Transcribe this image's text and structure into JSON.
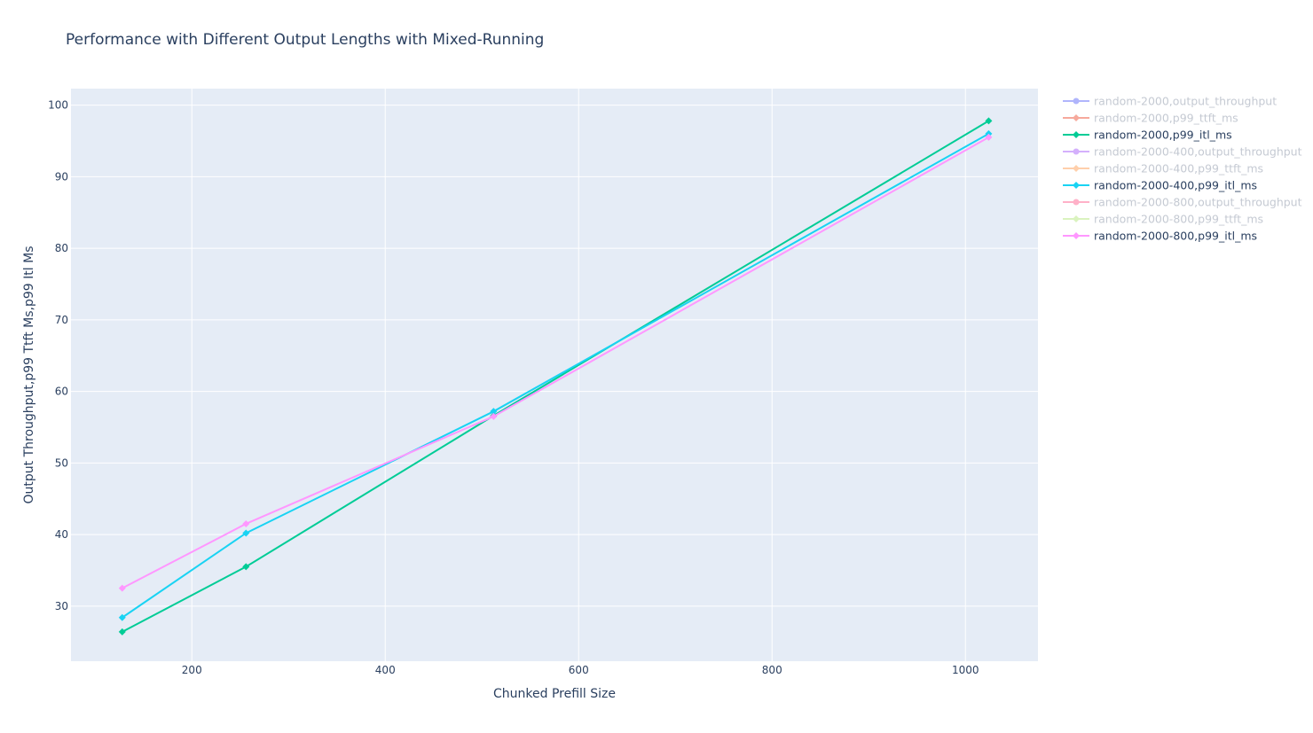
{
  "chart_data": {
    "type": "line",
    "title": "Performance with Different Output Lengths with Mixed-Running",
    "xlabel": "Chunked Prefill Size",
    "ylabel": "Output Throughput,p99 Ttft Ms,p99 Itl Ms",
    "xlim": [
      75,
      1075
    ],
    "ylim": [
      22.3,
      102.3
    ],
    "xticks": [
      200,
      400,
      600,
      800,
      1000
    ],
    "yticks": [
      30,
      40,
      50,
      60,
      70,
      80,
      90,
      100
    ],
    "grid": true,
    "legend_position": "right",
    "background": "#e5ecf6",
    "series": [
      {
        "name": "random-2000,output_throughput",
        "color": "#636efa",
        "visible": false,
        "marker": "circle",
        "x": [],
        "y": []
      },
      {
        "name": "random-2000,p99_ttft_ms",
        "color": "#ef553b",
        "visible": false,
        "marker": "diamond",
        "x": [],
        "y": []
      },
      {
        "name": "random-2000,p99_itl_ms",
        "color": "#00cc96",
        "visible": true,
        "marker": "diamond",
        "x": [
          128,
          256,
          512,
          1024
        ],
        "y": [
          26.4,
          35.5,
          56.6,
          97.8
        ]
      },
      {
        "name": "random-2000-400,output_throughput",
        "color": "#ab63fa",
        "visible": false,
        "marker": "circle",
        "x": [],
        "y": []
      },
      {
        "name": "random-2000-400,p99_ttft_ms",
        "color": "#ffa15a",
        "visible": false,
        "marker": "diamond",
        "x": [],
        "y": []
      },
      {
        "name": "random-2000-400,p99_itl_ms",
        "color": "#19d3f3",
        "visible": true,
        "marker": "diamond",
        "x": [
          128,
          256,
          512,
          1024
        ],
        "y": [
          28.4,
          40.2,
          57.2,
          96.0
        ]
      },
      {
        "name": "random-2000-800,output_throughput",
        "color": "#ff6692",
        "visible": false,
        "marker": "circle",
        "x": [],
        "y": []
      },
      {
        "name": "random-2000-800,p99_ttft_ms",
        "color": "#b6e880",
        "visible": false,
        "marker": "diamond",
        "x": [],
        "y": []
      },
      {
        "name": "random-2000-800,p99_itl_ms",
        "color": "#ff97ff",
        "visible": true,
        "marker": "diamond",
        "x": [
          128,
          256,
          512,
          1024
        ],
        "y": [
          32.5,
          41.5,
          56.5,
          95.5
        ]
      }
    ]
  }
}
